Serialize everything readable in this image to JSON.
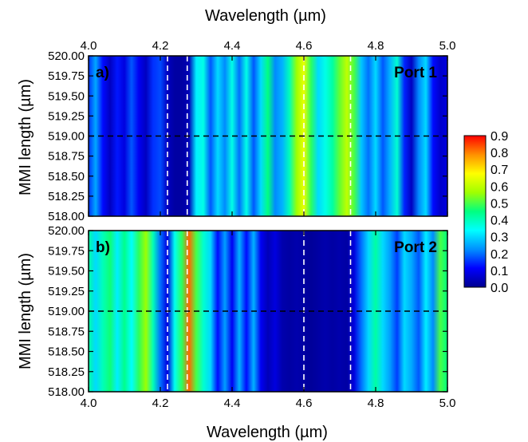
{
  "chart_data": {
    "type": "heatmap",
    "x_axis": {
      "label": "Wavelength (µm)",
      "range": [
        4.0,
        5.0
      ],
      "ticks": [
        "4.0",
        "4.2",
        "4.4",
        "4.6",
        "4.8",
        "5.0"
      ]
    },
    "y_axis": {
      "label": "MMI length (µm)",
      "range": [
        518.0,
        520.0
      ],
      "ticks": [
        "518.00",
        "518.25",
        "518.50",
        "518.75",
        "519.00",
        "519.25",
        "519.50",
        "519.75",
        "520.00"
      ]
    },
    "colorbar": {
      "range": [
        0.0,
        0.9
      ],
      "ticks": [
        "0.0",
        "0.1",
        "0.2",
        "0.3",
        "0.4",
        "0.5",
        "0.6",
        "0.7",
        "0.8",
        "0.9"
      ],
      "colormap": [
        "#00008f",
        "#0000ff",
        "#0090ff",
        "#00ffff",
        "#00ff80",
        "#a0ff00",
        "#ffff00",
        "#ff9000",
        "#ff0000"
      ]
    },
    "guide_lines": {
      "vertical_wavelengths": [
        4.22,
        4.275,
        4.6,
        4.73
      ],
      "horizontal_length": 519.0
    },
    "panels": [
      {
        "panel_label": "a)",
        "port_label": "Port 1",
        "profile": [
          [
            4.0,
            0.15
          ],
          [
            4.02,
            0.25
          ],
          [
            4.04,
            0.12
          ],
          [
            4.06,
            0.05
          ],
          [
            4.08,
            0.13
          ],
          [
            4.1,
            0.08
          ],
          [
            4.12,
            0.18
          ],
          [
            4.14,
            0.1
          ],
          [
            4.16,
            0.05
          ],
          [
            4.18,
            0.15
          ],
          [
            4.2,
            0.17
          ],
          [
            4.22,
            0.05
          ],
          [
            4.24,
            0.02
          ],
          [
            4.26,
            0.02
          ],
          [
            4.28,
            0.04
          ],
          [
            4.3,
            0.32
          ],
          [
            4.32,
            0.36
          ],
          [
            4.34,
            0.18
          ],
          [
            4.36,
            0.3
          ],
          [
            4.38,
            0.22
          ],
          [
            4.4,
            0.36
          ],
          [
            4.42,
            0.2
          ],
          [
            4.44,
            0.36
          ],
          [
            4.46,
            0.18
          ],
          [
            4.48,
            0.3
          ],
          [
            4.5,
            0.45
          ],
          [
            4.52,
            0.22
          ],
          [
            4.54,
            0.26
          ],
          [
            4.56,
            0.4
          ],
          [
            4.58,
            0.56
          ],
          [
            4.6,
            0.65
          ],
          [
            4.62,
            0.48
          ],
          [
            4.64,
            0.3
          ],
          [
            4.66,
            0.36
          ],
          [
            4.68,
            0.42
          ],
          [
            4.7,
            0.52
          ],
          [
            4.72,
            0.6
          ],
          [
            4.74,
            0.5
          ],
          [
            4.76,
            0.28
          ],
          [
            4.78,
            0.2
          ],
          [
            4.8,
            0.3
          ],
          [
            4.82,
            0.18
          ],
          [
            4.84,
            0.26
          ],
          [
            4.86,
            0.38
          ],
          [
            4.88,
            0.14
          ],
          [
            4.9,
            0.05
          ],
          [
            4.92,
            0.22
          ],
          [
            4.94,
            0.3
          ],
          [
            4.96,
            0.12
          ],
          [
            4.98,
            0.06
          ],
          [
            5.0,
            0.08
          ]
        ]
      },
      {
        "panel_label": "b)",
        "port_label": "Port 2",
        "profile": [
          [
            4.0,
            0.42
          ],
          [
            4.02,
            0.3
          ],
          [
            4.04,
            0.4
          ],
          [
            4.06,
            0.46
          ],
          [
            4.08,
            0.32
          ],
          [
            4.1,
            0.44
          ],
          [
            4.12,
            0.34
          ],
          [
            4.14,
            0.48
          ],
          [
            4.16,
            0.56
          ],
          [
            4.18,
            0.4
          ],
          [
            4.2,
            0.2
          ],
          [
            4.22,
            0.08
          ],
          [
            4.24,
            0.35
          ],
          [
            4.26,
            0.48
          ],
          [
            4.28,
            0.82
          ],
          [
            4.3,
            0.5
          ],
          [
            4.32,
            0.38
          ],
          [
            4.34,
            0.3
          ],
          [
            4.36,
            0.12
          ],
          [
            4.38,
            0.24
          ],
          [
            4.4,
            0.1
          ],
          [
            4.42,
            0.26
          ],
          [
            4.44,
            0.12
          ],
          [
            4.46,
            0.26
          ],
          [
            4.48,
            0.1
          ],
          [
            4.5,
            0.04
          ],
          [
            4.52,
            0.08
          ],
          [
            4.54,
            0.03
          ],
          [
            4.56,
            0.02
          ],
          [
            4.58,
            0.03
          ],
          [
            4.6,
            0.02
          ],
          [
            4.62,
            0.01
          ],
          [
            4.64,
            0.02
          ],
          [
            4.66,
            0.03
          ],
          [
            4.68,
            0.02
          ],
          [
            4.7,
            0.03
          ],
          [
            4.72,
            0.02
          ],
          [
            4.74,
            0.08
          ],
          [
            4.76,
            0.2
          ],
          [
            4.78,
            0.3
          ],
          [
            4.8,
            0.42
          ],
          [
            4.82,
            0.3
          ],
          [
            4.84,
            0.24
          ],
          [
            4.86,
            0.16
          ],
          [
            4.88,
            0.3
          ],
          [
            4.9,
            0.25
          ],
          [
            4.92,
            0.18
          ],
          [
            4.94,
            0.32
          ],
          [
            4.96,
            0.22
          ],
          [
            4.98,
            0.5
          ],
          [
            5.0,
            0.45
          ]
        ]
      }
    ]
  }
}
